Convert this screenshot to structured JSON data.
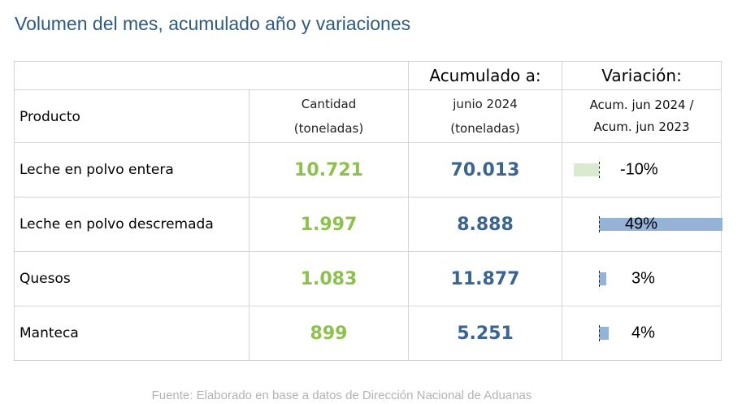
{
  "title": "Volumen del mes, acumulado año y variaciones",
  "header": {
    "producto": "Producto",
    "cantidad_line1": "Cantidad",
    "cantidad_line2": "(toneladas)",
    "acumulado_title": "Acumulado a:",
    "acumulado_line1": "junio 2024",
    "acumulado_line2": "(toneladas)",
    "variacion_title": "Variación:",
    "variacion_line1": "Acum. jun 2024 /",
    "variacion_line2": "Acum. jun 2023"
  },
  "rows": [
    {
      "producto": "Leche en polvo entera",
      "cantidad": "10.721",
      "acumulado": "70.013",
      "variacion_label": "-10%",
      "variacion": -10
    },
    {
      "producto": "Leche en polvo descremada",
      "cantidad": "1.997",
      "acumulado": "8.888",
      "variacion_label": "49%",
      "variacion": 49
    },
    {
      "producto": "Quesos",
      "cantidad": "1.083",
      "acumulado": "11.877",
      "variacion_label": "3%",
      "variacion": 3
    },
    {
      "producto": "Manteca",
      "cantidad": "899",
      "acumulado": "5.251",
      "variacion_label": "4%",
      "variacion": 4
    }
  ],
  "colors": {
    "cantidad": "#8dc04f",
    "acumulado": "#3a6491",
    "bar_negative": "#d9ead0",
    "bar_positive": "#95b3d7"
  },
  "source": "Fuente: Elaborado en base a datos de Dirección Nacional de Aduanas"
}
